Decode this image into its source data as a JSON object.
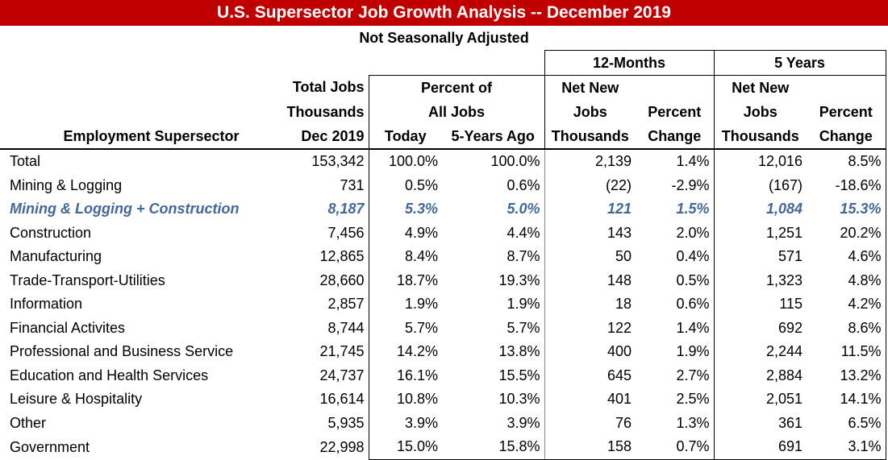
{
  "title": "U.S.  Supersector Job Growth Analysis -- December 2019",
  "subtitle": "Not Seasonally Adjusted",
  "colors": {
    "title_bar": "#c00000",
    "highlight_row": "#44679b"
  },
  "header": {
    "group_12m": "12-Months",
    "group_5y": "5 Years",
    "total_jobs": [
      "Total Jobs",
      "Thousands",
      "Dec 2019"
    ],
    "percent_of": [
      "Percent of",
      "All Jobs"
    ],
    "today": "Today",
    "five_years_ago": "5-Years Ago",
    "net_new": [
      "Net New",
      "Jobs",
      "Thousands"
    ],
    "percent_change": [
      "Percent",
      "Change"
    ],
    "supersector": "Employment Supersector"
  },
  "rows": [
    [
      "Total",
      "153,342",
      "100.0%",
      "100.0%",
      "2,139",
      "1.4%",
      "12,016",
      "8.5%"
    ],
    [
      "Mining & Logging",
      "731",
      "0.5%",
      "0.6%",
      "(22)",
      "-2.9%",
      "(167)",
      "-18.6%"
    ],
    [
      "Mining & Logging + Construction",
      "8,187",
      "5.3%",
      "5.0%",
      "121",
      "1.5%",
      "1,084",
      "15.3%"
    ],
    [
      "Construction",
      "7,456",
      "4.9%",
      "4.4%",
      "143",
      "2.0%",
      "1,251",
      "20.2%"
    ],
    [
      "Manufacturing",
      "12,865",
      "8.4%",
      "8.7%",
      "50",
      "0.4%",
      "571",
      "4.6%"
    ],
    [
      "Trade-Transport-Utilities",
      "28,660",
      "18.7%",
      "19.3%",
      "148",
      "0.5%",
      "1,323",
      "4.8%"
    ],
    [
      "Information",
      "2,857",
      "1.9%",
      "1.9%",
      "18",
      "0.6%",
      "115",
      "4.2%"
    ],
    [
      "Financial Activites",
      "8,744",
      "5.7%",
      "5.7%",
      "122",
      "1.4%",
      "692",
      "8.6%"
    ],
    [
      "Professional and Business Service",
      "21,745",
      "14.2%",
      "13.8%",
      "400",
      "1.9%",
      "2,244",
      "11.5%"
    ],
    [
      "Education and Health Services",
      "24,737",
      "16.1%",
      "15.5%",
      "645",
      "2.7%",
      "2,884",
      "13.2%"
    ],
    [
      "Leisure & Hospitality",
      "16,614",
      "10.8%",
      "10.3%",
      "401",
      "2.5%",
      "2,051",
      "14.1%"
    ],
    [
      "Other",
      "5,935",
      "3.9%",
      "3.9%",
      "76",
      "1.3%",
      "361",
      "6.5%"
    ],
    [
      "Government",
      "22,998",
      "15.0%",
      "15.8%",
      "158",
      "0.7%",
      "691",
      "3.1%"
    ]
  ],
  "highlight_row_index": 2
}
